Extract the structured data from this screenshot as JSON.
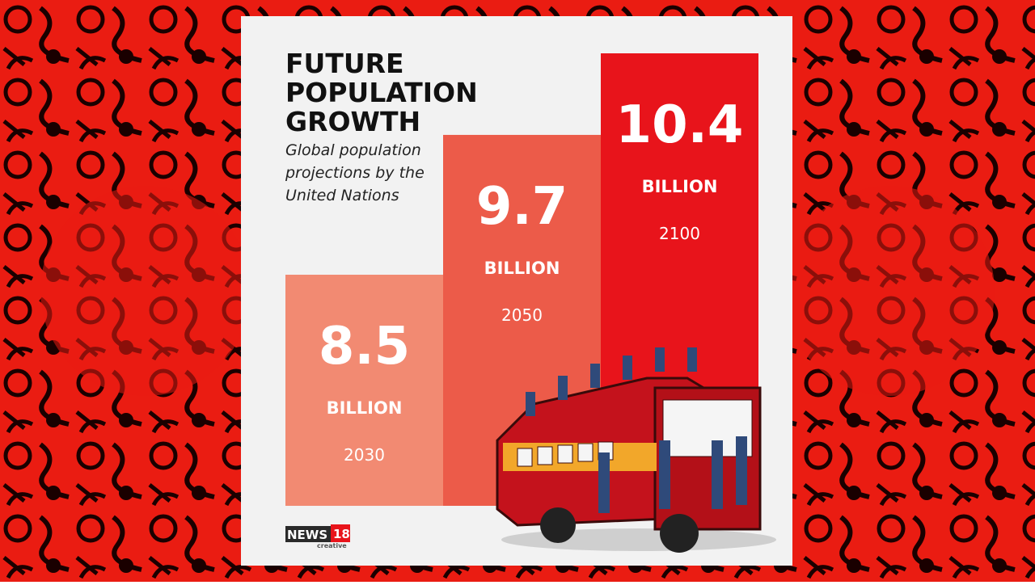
{
  "chart_data": {
    "type": "bar",
    "title": "FUTURE POPULATION GROWTH",
    "subtitle": "Global population projections by the United Nations",
    "categories": [
      "2030",
      "2050",
      "2100"
    ],
    "values": [
      8.5,
      9.7,
      10.4
    ],
    "unit": "BILLION",
    "colors": [
      "#f28a72",
      "#ec5b49",
      "#e8141b"
    ],
    "logo": {
      "brand": "NEWS",
      "number": "18",
      "tagline": "creative"
    }
  }
}
